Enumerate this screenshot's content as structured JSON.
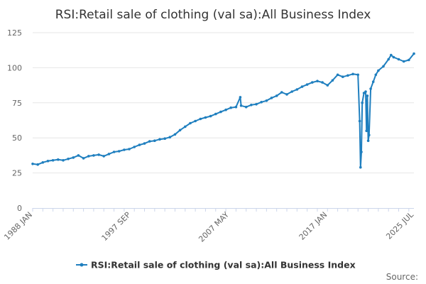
{
  "chart_data": {
    "type": "line",
    "title": "RSI:Retail sale of clothing (val sa):All Business Index",
    "xlabel": "",
    "ylabel": "",
    "ylim": [
      0,
      125
    ],
    "y_ticks": [
      "0",
      "25",
      "50",
      "75",
      "100",
      "125"
    ],
    "x_range": [
      "1988 JAN",
      "2025 JUL"
    ],
    "x_ticks": [
      "1988 JAN",
      "1997 SEP",
      "2007 MAY",
      "2017 JAN",
      "2025 JUL"
    ],
    "grid": "horizontal",
    "legend_position": "bottom",
    "source_label": "Source:",
    "colors": {
      "series": "#1f7fbf",
      "grid": "#e6e6e6",
      "axis": "#ccd6eb"
    },
    "series": [
      {
        "name": "RSI:Retail sale of clothing (val sa):All Business Index",
        "points": [
          [
            "1988-01",
            31.5
          ],
          [
            "1988-07",
            31.0
          ],
          [
            "1989-01",
            32.5
          ],
          [
            "1989-07",
            33.5
          ],
          [
            "1990-01",
            34.0
          ],
          [
            "1990-07",
            34.5
          ],
          [
            "1991-01",
            34.0
          ],
          [
            "1991-07",
            35.0
          ],
          [
            "1992-01",
            36.0
          ],
          [
            "1992-07",
            37.5
          ],
          [
            "1993-01",
            35.5
          ],
          [
            "1993-07",
            37.0
          ],
          [
            "1994-01",
            37.5
          ],
          [
            "1994-07",
            38.0
          ],
          [
            "1995-01",
            37.0
          ],
          [
            "1995-07",
            38.5
          ],
          [
            "1996-01",
            40.0
          ],
          [
            "1996-07",
            40.5
          ],
          [
            "1997-01",
            41.5
          ],
          [
            "1997-07",
            42.0
          ],
          [
            "1998-01",
            43.5
          ],
          [
            "1998-07",
            45.0
          ],
          [
            "1999-01",
            46.0
          ],
          [
            "1999-07",
            47.5
          ],
          [
            "2000-01",
            48.0
          ],
          [
            "2000-07",
            49.0
          ],
          [
            "2001-01",
            49.5
          ],
          [
            "2001-07",
            50.5
          ],
          [
            "2002-01",
            52.5
          ],
          [
            "2002-07",
            55.5
          ],
          [
            "2003-01",
            58.0
          ],
          [
            "2003-07",
            60.5
          ],
          [
            "2004-01",
            62.0
          ],
          [
            "2004-07",
            63.5
          ],
          [
            "2005-01",
            64.5
          ],
          [
            "2005-07",
            65.5
          ],
          [
            "2006-01",
            67.0
          ],
          [
            "2006-07",
            68.5
          ],
          [
            "2007-01",
            70.0
          ],
          [
            "2007-07",
            71.5
          ],
          [
            "2008-01",
            72.0
          ],
          [
            "2008-06",
            79.0
          ],
          [
            "2008-07",
            73.0
          ],
          [
            "2009-01",
            72.0
          ],
          [
            "2009-07",
            73.5
          ],
          [
            "2010-01",
            74.0
          ],
          [
            "2010-07",
            75.5
          ],
          [
            "2011-01",
            76.5
          ],
          [
            "2011-07",
            78.5
          ],
          [
            "2012-01",
            80.0
          ],
          [
            "2012-07",
            82.5
          ],
          [
            "2013-01",
            81.0
          ],
          [
            "2013-07",
            83.0
          ],
          [
            "2014-01",
            84.5
          ],
          [
            "2014-07",
            86.5
          ],
          [
            "2015-01",
            88.0
          ],
          [
            "2015-07",
            89.5
          ],
          [
            "2016-01",
            90.5
          ],
          [
            "2016-07",
            89.5
          ],
          [
            "2017-01",
            87.5
          ],
          [
            "2017-07",
            91.0
          ],
          [
            "2018-01",
            95.0
          ],
          [
            "2018-07",
            93.5
          ],
          [
            "2019-01",
            94.5
          ],
          [
            "2019-07",
            95.5
          ],
          [
            "2020-01",
            95.0
          ],
          [
            "2020-03",
            62.0
          ],
          [
            "2020-04",
            29.0
          ],
          [
            "2020-05",
            40.0
          ],
          [
            "2020-06",
            75.0
          ],
          [
            "2020-08",
            82.0
          ],
          [
            "2020-10",
            83.0
          ],
          [
            "2020-11",
            55.0
          ],
          [
            "2020-12",
            80.0
          ],
          [
            "2021-01",
            48.0
          ],
          [
            "2021-02",
            52.0
          ],
          [
            "2021-04",
            85.0
          ],
          [
            "2021-07",
            90.0
          ],
          [
            "2021-10",
            95.0
          ],
          [
            "2022-01",
            98.0
          ],
          [
            "2022-07",
            101.0
          ],
          [
            "2023-01",
            106.0
          ],
          [
            "2023-04",
            109.0
          ],
          [
            "2023-07",
            107.5
          ],
          [
            "2024-01",
            106.0
          ],
          [
            "2024-07",
            104.5
          ],
          [
            "2025-01",
            105.5
          ],
          [
            "2025-07",
            110.0
          ]
        ]
      }
    ]
  }
}
